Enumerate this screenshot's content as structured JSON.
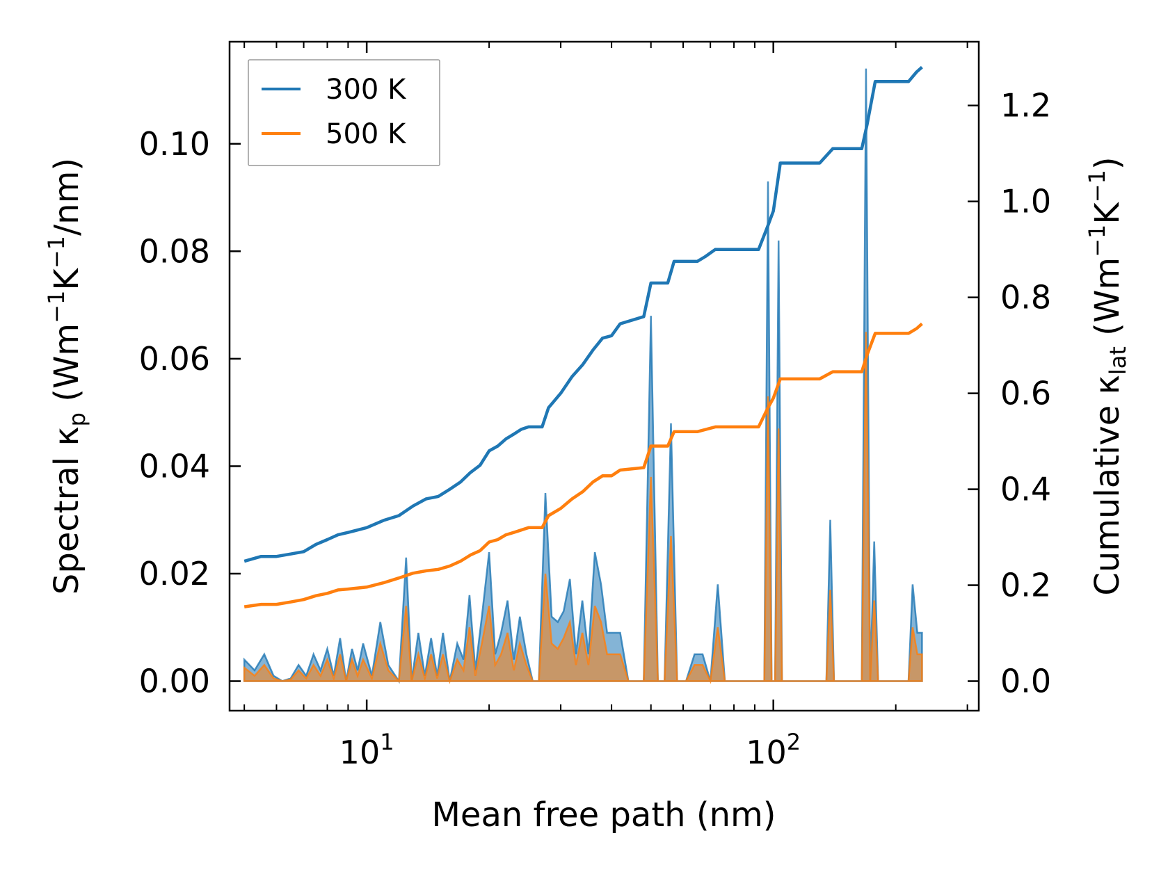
{
  "chart_data": {
    "type": "line",
    "xscale": "log",
    "xlabel": "Mean free path (nm)",
    "ylabel_left": {
      "pre": "Spectral κ",
      "sub": "p",
      "mid": " (Wm",
      "sup1": "−1",
      "mid2": "K",
      "sup2": "−1",
      "post": "/nm)"
    },
    "ylabel_right": {
      "pre": "Cumulative κ",
      "sub": "lat",
      "mid": " (Wm",
      "sup1": "−1",
      "mid2": "K",
      "sup2": "−1",
      "post": ")"
    },
    "xlim": [
      4.6,
      320
    ],
    "ylim_left": [
      -0.0055,
      0.119
    ],
    "ylim_right": [
      -0.0616,
      1.333
    ],
    "x_major_ticks": [
      {
        "value": 10,
        "base": "10",
        "exp": "1"
      },
      {
        "value": 100,
        "base": "10",
        "exp": "2"
      }
    ],
    "x_minor_ticks": [
      5,
      6,
      7,
      8,
      9,
      20,
      30,
      40,
      50,
      60,
      70,
      80,
      90,
      200,
      300
    ],
    "y_left_ticks": [
      "0.00",
      "0.02",
      "0.04",
      "0.06",
      "0.08",
      "0.10"
    ],
    "y_right_ticks": [
      "0.0",
      "0.2",
      "0.4",
      "0.6",
      "0.8",
      "1.0",
      "1.2"
    ],
    "legend": {
      "position": "upper-left",
      "entries": [
        {
          "label": "300 K",
          "color": "#1f77b4"
        },
        {
          "label": "500 K",
          "color": "#ff7f0e"
        }
      ]
    },
    "series": [
      {
        "name": "300 K",
        "color": "#1f77b4",
        "cumulative_axis": "right",
        "cumulative": [
          [
            5.0,
            0.25
          ],
          [
            5.5,
            0.26
          ],
          [
            6.0,
            0.26
          ],
          [
            6.5,
            0.265
          ],
          [
            7.0,
            0.27
          ],
          [
            7.5,
            0.285
          ],
          [
            8.0,
            0.295
          ],
          [
            8.5,
            0.305
          ],
          [
            9.0,
            0.31
          ],
          [
            9.5,
            0.315
          ],
          [
            10.0,
            0.32
          ],
          [
            11.0,
            0.335
          ],
          [
            12.0,
            0.345
          ],
          [
            13.0,
            0.365
          ],
          [
            14.0,
            0.38
          ],
          [
            15.0,
            0.385
          ],
          [
            16.0,
            0.4
          ],
          [
            17.0,
            0.415
          ],
          [
            18.0,
            0.435
          ],
          [
            19.0,
            0.45
          ],
          [
            20.0,
            0.48
          ],
          [
            21.0,
            0.49
          ],
          [
            22.0,
            0.505
          ],
          [
            23.0,
            0.515
          ],
          [
            24.0,
            0.525
          ],
          [
            25.0,
            0.53
          ],
          [
            27.0,
            0.53
          ],
          [
            28.0,
            0.57
          ],
          [
            30.0,
            0.6
          ],
          [
            32.0,
            0.635
          ],
          [
            34.0,
            0.66
          ],
          [
            36.0,
            0.69
          ],
          [
            38.0,
            0.715
          ],
          [
            40.0,
            0.72
          ],
          [
            42.0,
            0.745
          ],
          [
            48.0,
            0.76
          ],
          [
            50.0,
            0.83
          ],
          [
            55.0,
            0.83
          ],
          [
            57.0,
            0.875
          ],
          [
            65.0,
            0.875
          ],
          [
            68.0,
            0.885
          ],
          [
            72.0,
            0.9
          ],
          [
            92.0,
            0.9
          ],
          [
            97.0,
            0.95
          ],
          [
            100.0,
            0.98
          ],
          [
            104.0,
            1.08
          ],
          [
            130.0,
            1.08
          ],
          [
            140.0,
            1.11
          ],
          [
            165.0,
            1.11
          ],
          [
            170.0,
            1.16
          ],
          [
            178.0,
            1.25
          ],
          [
            215.0,
            1.25
          ],
          [
            225.0,
            1.27
          ],
          [
            232.0,
            1.28
          ]
        ],
        "spectral": [
          [
            5.0,
            0.004
          ],
          [
            5.3,
            0.002
          ],
          [
            5.6,
            0.005
          ],
          [
            5.9,
            0.001
          ],
          [
            6.2,
            0.0
          ],
          [
            6.5,
            0.0005
          ],
          [
            6.8,
            0.003
          ],
          [
            7.1,
            0.001
          ],
          [
            7.4,
            0.005
          ],
          [
            7.7,
            0.002
          ],
          [
            8.0,
            0.006
          ],
          [
            8.3,
            0.001
          ],
          [
            8.6,
            0.008
          ],
          [
            8.9,
            0.0
          ],
          [
            9.2,
            0.006
          ],
          [
            9.5,
            0.002
          ],
          [
            9.8,
            0.007
          ],
          [
            10.3,
            0.001
          ],
          [
            10.8,
            0.011
          ],
          [
            11.3,
            0.003
          ],
          [
            12.0,
            0.0
          ],
          [
            12.5,
            0.023
          ],
          [
            12.9,
            0.0
          ],
          [
            13.4,
            0.009
          ],
          [
            13.9,
            0.001
          ],
          [
            14.4,
            0.008
          ],
          [
            14.9,
            0.001
          ],
          [
            15.4,
            0.009
          ],
          [
            16.0,
            0.0
          ],
          [
            16.7,
            0.007
          ],
          [
            17.3,
            0.004
          ],
          [
            17.9,
            0.016
          ],
          [
            18.5,
            0.002
          ],
          [
            19.2,
            0.012
          ],
          [
            20.0,
            0.024
          ],
          [
            20.7,
            0.005
          ],
          [
            21.4,
            0.009
          ],
          [
            22.2,
            0.015
          ],
          [
            23.0,
            0.004
          ],
          [
            23.8,
            0.012
          ],
          [
            24.7,
            0.005
          ],
          [
            25.6,
            0.0
          ],
          [
            26.5,
            0.0
          ],
          [
            27.5,
            0.035
          ],
          [
            28.5,
            0.012
          ],
          [
            29.5,
            0.011
          ],
          [
            30.5,
            0.013
          ],
          [
            31.6,
            0.019
          ],
          [
            32.7,
            0.005
          ],
          [
            33.9,
            0.015
          ],
          [
            35.1,
            0.005
          ],
          [
            36.4,
            0.024
          ],
          [
            37.7,
            0.018
          ],
          [
            39.0,
            0.009
          ],
          [
            40.4,
            0.009
          ],
          [
            42.0,
            0.009
          ],
          [
            44.0,
            0.0
          ],
          [
            46.0,
            0.0
          ],
          [
            48.0,
            0.0
          ],
          [
            50.0,
            0.068
          ],
          [
            52.0,
            0.0
          ],
          [
            54.0,
            0.0
          ],
          [
            56.0,
            0.048
          ],
          [
            58.0,
            0.0
          ],
          [
            61.0,
            0.0
          ],
          [
            64.0,
            0.005
          ],
          [
            67.0,
            0.005
          ],
          [
            70.0,
            0.0
          ],
          [
            73.0,
            0.018
          ],
          [
            76.0,
            0.0
          ],
          [
            85.0,
            0.0
          ],
          [
            95.0,
            0.0
          ],
          [
            97.0,
            0.093
          ],
          [
            99.0,
            0.0
          ],
          [
            101.0,
            0.0
          ],
          [
            103.0,
            0.082
          ],
          [
            105.0,
            0.0
          ],
          [
            120.0,
            0.0
          ],
          [
            135.0,
            0.0
          ],
          [
            138.0,
            0.03
          ],
          [
            141.0,
            0.0
          ],
          [
            160.0,
            0.0
          ],
          [
            165.0,
            0.0
          ],
          [
            169.0,
            0.114
          ],
          [
            173.0,
            0.0
          ],
          [
            177.0,
            0.026
          ],
          [
            181.0,
            0.0
          ],
          [
            200.0,
            0.0
          ],
          [
            215.0,
            0.0
          ],
          [
            220.0,
            0.018
          ],
          [
            226.0,
            0.009
          ],
          [
            232.0,
            0.009
          ]
        ]
      },
      {
        "name": "500 K",
        "color": "#ff7f0e",
        "cumulative_axis": "right",
        "cumulative": [
          [
            5.0,
            0.155
          ],
          [
            5.5,
            0.16
          ],
          [
            6.0,
            0.16
          ],
          [
            6.5,
            0.165
          ],
          [
            7.0,
            0.17
          ],
          [
            7.5,
            0.178
          ],
          [
            8.0,
            0.183
          ],
          [
            8.5,
            0.19
          ],
          [
            9.0,
            0.192
          ],
          [
            10.0,
            0.196
          ],
          [
            11.0,
            0.205
          ],
          [
            12.0,
            0.215
          ],
          [
            13.0,
            0.225
          ],
          [
            14.0,
            0.23
          ],
          [
            15.0,
            0.233
          ],
          [
            16.0,
            0.24
          ],
          [
            17.0,
            0.25
          ],
          [
            18.0,
            0.263
          ],
          [
            19.0,
            0.272
          ],
          [
            20.0,
            0.29
          ],
          [
            21.0,
            0.295
          ],
          [
            22.0,
            0.305
          ],
          [
            23.0,
            0.31
          ],
          [
            24.0,
            0.315
          ],
          [
            25.0,
            0.32
          ],
          [
            27.0,
            0.32
          ],
          [
            28.0,
            0.345
          ],
          [
            30.0,
            0.36
          ],
          [
            32.0,
            0.38
          ],
          [
            34.0,
            0.395
          ],
          [
            36.0,
            0.415
          ],
          [
            38.0,
            0.428
          ],
          [
            40.0,
            0.428
          ],
          [
            42.0,
            0.44
          ],
          [
            48.0,
            0.445
          ],
          [
            50.0,
            0.49
          ],
          [
            55.0,
            0.49
          ],
          [
            57.0,
            0.52
          ],
          [
            65.0,
            0.52
          ],
          [
            72.0,
            0.53
          ],
          [
            92.0,
            0.53
          ],
          [
            97.0,
            0.57
          ],
          [
            100.0,
            0.59
          ],
          [
            104.0,
            0.63
          ],
          [
            130.0,
            0.63
          ],
          [
            140.0,
            0.645
          ],
          [
            165.0,
            0.645
          ],
          [
            170.0,
            0.68
          ],
          [
            178.0,
            0.725
          ],
          [
            215.0,
            0.725
          ],
          [
            225.0,
            0.735
          ],
          [
            232.0,
            0.745
          ]
        ],
        "spectral": [
          [
            5.0,
            0.0025
          ],
          [
            5.3,
            0.001
          ],
          [
            5.6,
            0.003
          ],
          [
            5.9,
            0.0005
          ],
          [
            6.2,
            0.0
          ],
          [
            6.5,
            0.0003
          ],
          [
            6.8,
            0.002
          ],
          [
            7.1,
            0.0005
          ],
          [
            7.4,
            0.003
          ],
          [
            7.7,
            0.001
          ],
          [
            8.0,
            0.004
          ],
          [
            8.3,
            0.0005
          ],
          [
            8.6,
            0.005
          ],
          [
            8.9,
            0.0
          ],
          [
            9.2,
            0.004
          ],
          [
            9.5,
            0.001
          ],
          [
            9.8,
            0.004
          ],
          [
            10.3,
            0.0005
          ],
          [
            10.8,
            0.007
          ],
          [
            11.3,
            0.002
          ],
          [
            12.0,
            0.0
          ],
          [
            12.5,
            0.014
          ],
          [
            12.9,
            0.0
          ],
          [
            13.4,
            0.005
          ],
          [
            13.9,
            0.0005
          ],
          [
            14.4,
            0.005
          ],
          [
            14.9,
            0.0005
          ],
          [
            15.4,
            0.005
          ],
          [
            16.0,
            0.0
          ],
          [
            16.7,
            0.004
          ],
          [
            17.3,
            0.002
          ],
          [
            17.9,
            0.01
          ],
          [
            18.5,
            0.001
          ],
          [
            19.2,
            0.007
          ],
          [
            20.0,
            0.014
          ],
          [
            20.7,
            0.003
          ],
          [
            21.4,
            0.005
          ],
          [
            22.2,
            0.009
          ],
          [
            23.0,
            0.002
          ],
          [
            23.8,
            0.007
          ],
          [
            24.7,
            0.003
          ],
          [
            25.6,
            0.0
          ],
          [
            26.5,
            0.0
          ],
          [
            27.5,
            0.02
          ],
          [
            28.5,
            0.007
          ],
          [
            29.5,
            0.006
          ],
          [
            30.5,
            0.008
          ],
          [
            31.6,
            0.011
          ],
          [
            32.7,
            0.003
          ],
          [
            33.9,
            0.009
          ],
          [
            35.1,
            0.003
          ],
          [
            36.4,
            0.014
          ],
          [
            37.7,
            0.011
          ],
          [
            39.0,
            0.005
          ],
          [
            40.4,
            0.005
          ],
          [
            42.0,
            0.005
          ],
          [
            44.0,
            0.0
          ],
          [
            46.0,
            0.0
          ],
          [
            48.0,
            0.0
          ],
          [
            50.0,
            0.038
          ],
          [
            52.0,
            0.0
          ],
          [
            54.0,
            0.0
          ],
          [
            56.0,
            0.027
          ],
          [
            58.0,
            0.0
          ],
          [
            61.0,
            0.0
          ],
          [
            64.0,
            0.003
          ],
          [
            67.0,
            0.003
          ],
          [
            70.0,
            0.0
          ],
          [
            73.0,
            0.01
          ],
          [
            76.0,
            0.0
          ],
          [
            85.0,
            0.0
          ],
          [
            95.0,
            0.0
          ],
          [
            97.0,
            0.053
          ],
          [
            99.0,
            0.0
          ],
          [
            101.0,
            0.0
          ],
          [
            103.0,
            0.047
          ],
          [
            105.0,
            0.0
          ],
          [
            120.0,
            0.0
          ],
          [
            135.0,
            0.0
          ],
          [
            138.0,
            0.017
          ],
          [
            141.0,
            0.0
          ],
          [
            160.0,
            0.0
          ],
          [
            165.0,
            0.0
          ],
          [
            169.0,
            0.065
          ],
          [
            173.0,
            0.0
          ],
          [
            177.0,
            0.015
          ],
          [
            181.0,
            0.0
          ],
          [
            200.0,
            0.0
          ],
          [
            215.0,
            0.0
          ],
          [
            220.0,
            0.01
          ],
          [
            226.0,
            0.005
          ],
          [
            232.0,
            0.005
          ]
        ]
      }
    ]
  }
}
